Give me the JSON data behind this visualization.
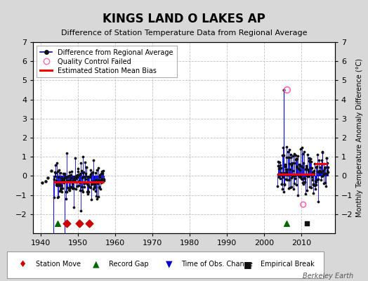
{
  "title": "KINGS LAND O LAKES AP",
  "subtitle": "Difference of Station Temperature Data from Regional Average",
  "ylabel_right": "Monthly Temperature Anomaly Difference (°C)",
  "xlim": [
    1938,
    2019
  ],
  "ylim": [
    -3,
    7
  ],
  "yticks": [
    -2,
    -1,
    0,
    1,
    2,
    3,
    4,
    5,
    6,
    7
  ],
  "xticks": [
    1940,
    1950,
    1960,
    1970,
    1980,
    1990,
    2000,
    2010
  ],
  "background_color": "#d8d8d8",
  "plot_bg_color": "#ffffff",
  "grid_color": "#bbbbbb",
  "data_color": "#111111",
  "line_color": "#0000dd",
  "bias_color": "#ff0000",
  "qc_color": "#ff69b4",
  "station_move_color": "#cc0000",
  "record_gap_color": "#006600",
  "time_obs_color": "#0000cc",
  "empirical_break_color": "#111111",
  "seg1_start": 1943.5,
  "seg1_end": 1957.0,
  "seg1_bias": -0.3,
  "seg2_start": 2003.5,
  "seg2_end": 2013.5,
  "seg2_bias": 0.1,
  "seg2b_start": 2013.5,
  "seg2b_end": 2017.0,
  "seg2b_bias": 0.65,
  "spike1_year": 1943.5,
  "spike1_val": -7.5,
  "spike2_year": 1946.5,
  "spike2_val": -7.0,
  "qc1_year": 2006.2,
  "qc1_val": 4.5,
  "qc2_year": 2010.5,
  "qc2_val": -1.5,
  "station_moves": [
    1947.0,
    1950.5,
    1953.0
  ],
  "record_gaps": [
    1944.5,
    2006.0
  ],
  "time_obs_changes": [],
  "empirical_breaks": [
    2011.5
  ],
  "watermark": "Berkeley Earth",
  "seed": 17
}
